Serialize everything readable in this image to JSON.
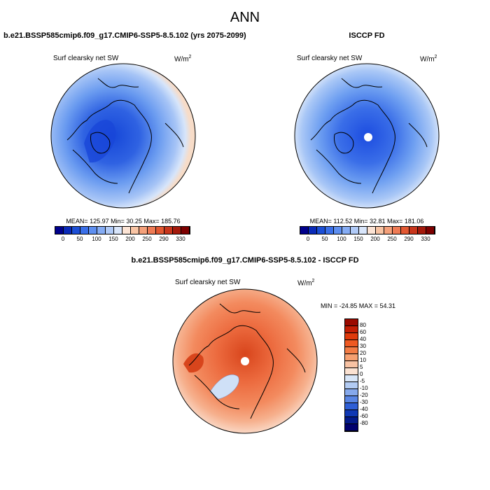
{
  "title": "ANN",
  "panel_left": {
    "title": "b.e21.BSSP585cmip6.f09_g17.CMIP6-SSP5-8.5.102 (yrs 2075-2099)",
    "variable": "Surf clearsky net SW",
    "units_base": "W/m",
    "units_exp": "2",
    "stats": "MEAN= 125.97   Min=  30.25   Max= 185.76"
  },
  "panel_right": {
    "title": "ISCCP FD",
    "variable": "Surf clearsky net SW",
    "units_base": "W/m",
    "units_exp": "2",
    "stats": "MEAN= 112.52   Min=  32.81   Max= 181.06"
  },
  "panel_diff": {
    "title": "b.e21.BSSP585cmip6.f09_g17.CMIP6-SSP5-8.5.102 - ISCCP FD",
    "variable": "Surf clearsky net SW",
    "units_base": "W/m",
    "units_exp": "2",
    "stats": "MIN = -24.85  MAX =  54.31"
  },
  "colorbar_abs": {
    "labels": [
      "0",
      "50",
      "100",
      "150",
      "200",
      "250",
      "290",
      "330"
    ],
    "colors": [
      "#00008b",
      "#0a2ab8",
      "#1c4fd6",
      "#3a6fe8",
      "#5e8ff0",
      "#85acf4",
      "#b0caf7",
      "#d8e5fa",
      "#fbe3d4",
      "#f8c4a4",
      "#f4a07a",
      "#ee7b55",
      "#e25832",
      "#c8361c",
      "#a41a0c",
      "#7d0000"
    ]
  },
  "colorbar_diff": {
    "labels": [
      "80",
      "60",
      "40",
      "30",
      "20",
      "10",
      "5",
      "0",
      "-5",
      "-10",
      "-20",
      "-30",
      "-40",
      "-60",
      "-80"
    ],
    "colors": [
      "#9b0a00",
      "#c41e05",
      "#e03a0c",
      "#ef5a22",
      "#f37c45",
      "#f6a071",
      "#f8c2a3",
      "#fbe2d2",
      "#d8e6f8",
      "#b2cbf3",
      "#86a9ec",
      "#5a86e4",
      "#2f5fd6",
      "#0f38b4",
      "#031a8a",
      "#00006e"
    ]
  },
  "map_colors": {
    "land_line": "#000000",
    "abs_peak": "#1546d8",
    "abs_mid": "#6a9bf0",
    "abs_edge": "#c7dbfa",
    "abs_outer": "#f7dcc8",
    "diff_outer": "#f4a585",
    "diff_mid": "#ec6a3e",
    "diff_core": "#d8451c",
    "diff_neg": "#cfe0f7"
  }
}
